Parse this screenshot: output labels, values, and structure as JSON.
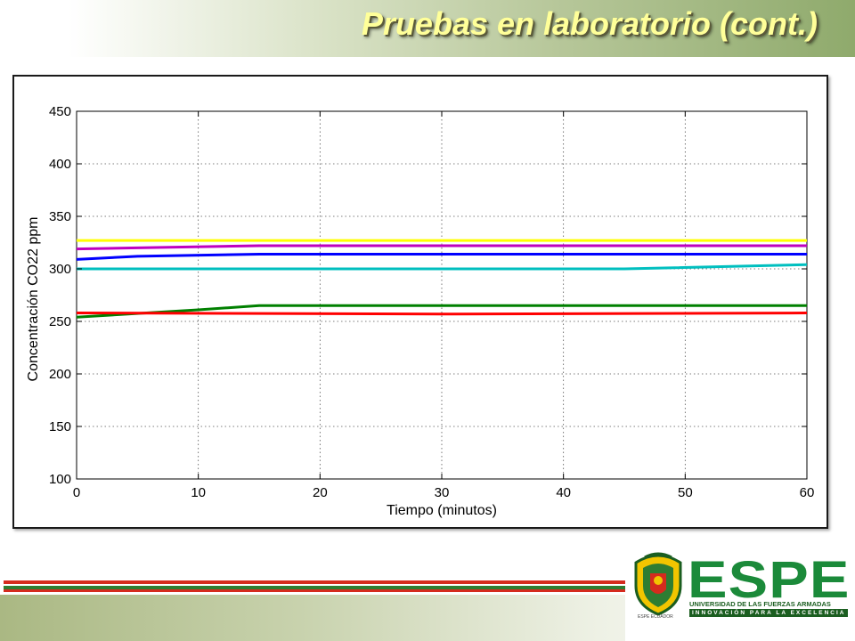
{
  "slide": {
    "title": "Pruebas en laboratorio (cont.)"
  },
  "logo": {
    "name": "ESPE",
    "subtitle": "UNIVERSIDAD DE LAS FUERZAS ARMADAS",
    "tagline": "INNOVACIÓN PARA LA EXCELENCIA",
    "crest_caption": "ESPE ECUADOR",
    "brand_green": "#1b8a3a"
  },
  "chart_data": {
    "type": "line",
    "xlabel": "Tiempo (minutos)",
    "ylabel": "Concentración CO22 ppm",
    "xlim": [
      0,
      60
    ],
    "ylim": [
      100,
      450
    ],
    "xticks": [
      0,
      10,
      20,
      30,
      40,
      50,
      60
    ],
    "yticks": [
      100,
      150,
      200,
      250,
      300,
      350,
      400,
      450
    ],
    "grid": true,
    "series": [
      {
        "color": "#ffff00",
        "x": [
          0,
          60
        ],
        "y": [
          327,
          327
        ]
      },
      {
        "color": "#bf00bf",
        "x": [
          0,
          5,
          15,
          60
        ],
        "y": [
          319,
          320,
          322,
          322
        ]
      },
      {
        "color": "#0000ff",
        "x": [
          0,
          5,
          15,
          60
        ],
        "y": [
          309,
          312,
          314,
          314
        ]
      },
      {
        "color": "#00bfbf",
        "x": [
          0,
          45,
          60
        ],
        "y": [
          300,
          300,
          304
        ]
      },
      {
        "color": "#008000",
        "x": [
          0,
          10,
          15,
          60
        ],
        "y": [
          254,
          261,
          265,
          265
        ]
      },
      {
        "color": "#ff0000",
        "x": [
          0,
          30,
          60
        ],
        "y": [
          258,
          257,
          258
        ]
      }
    ]
  }
}
